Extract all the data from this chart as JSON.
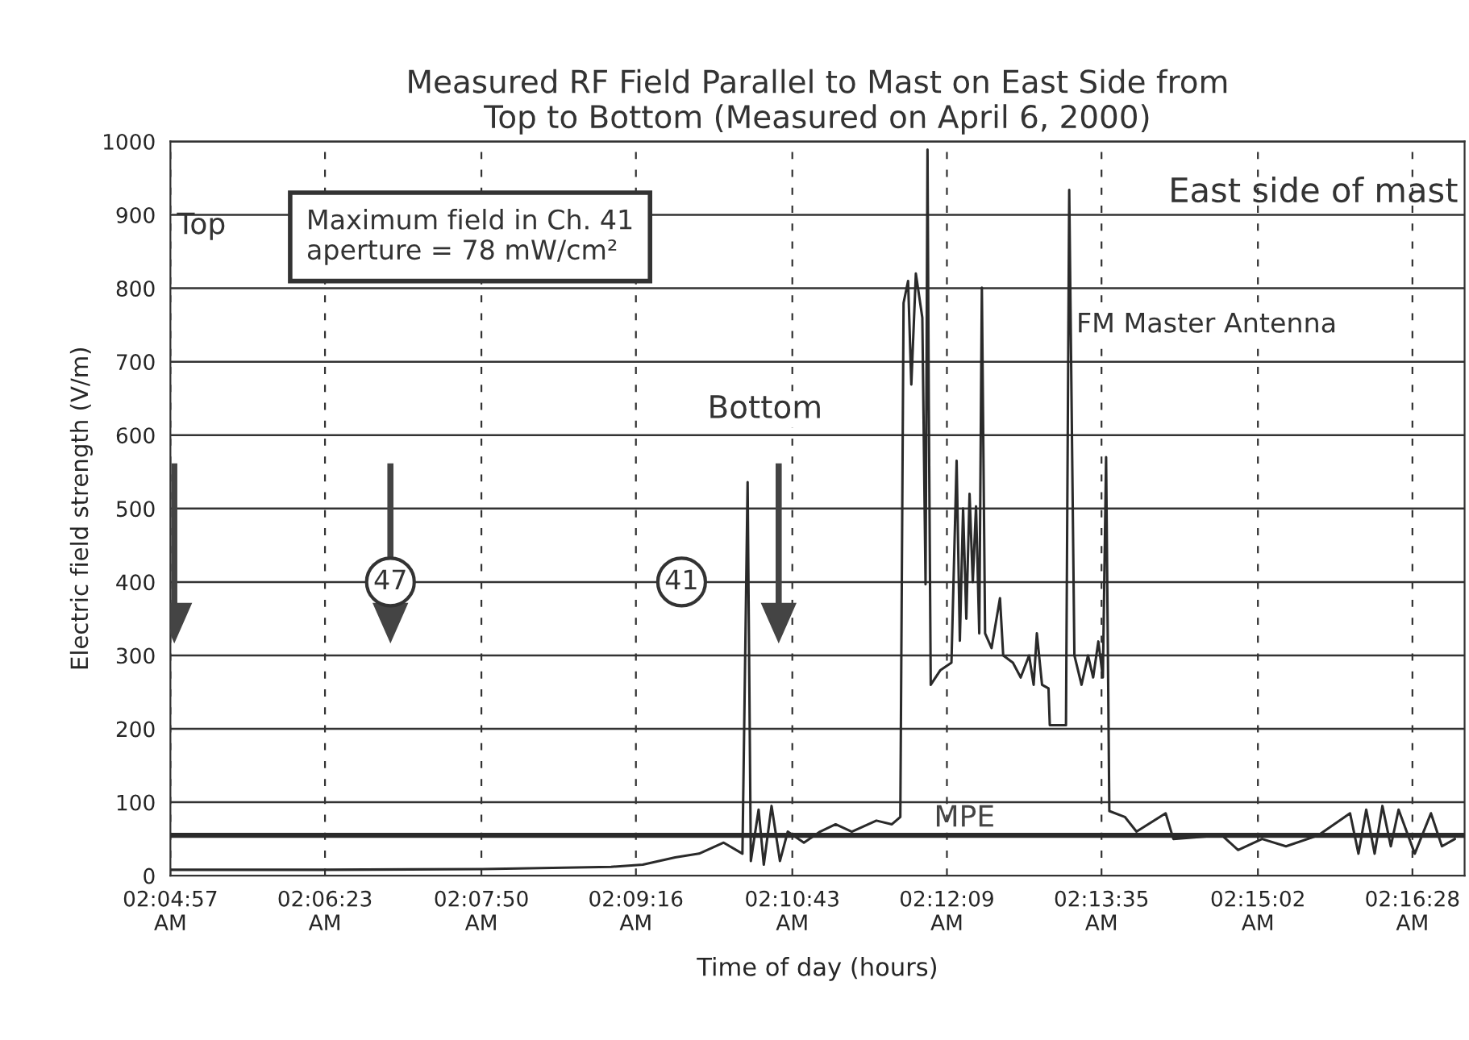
{
  "chart_data": {
    "type": "line",
    "title": "Measured RF Field Parallel to Mast on East Side from\nTop to Bottom (Measured on April 6, 2000)",
    "xlabel": "Time of day (hours)",
    "ylabel": "Electric field strength (V/m)",
    "x": [
      2.0825,
      2.1058,
      2.1307,
      2.1506,
      2.1555,
      2.1605,
      2.1642,
      2.168,
      2.1709,
      2.1717,
      2.1722,
      2.1734,
      2.1742,
      2.1754,
      2.1767,
      2.1779,
      2.1804,
      2.1829,
      2.1853,
      2.1878,
      2.1916,
      2.194,
      2.1953,
      2.1958,
      2.1965,
      2.197,
      2.1977,
      2.1987,
      2.1992,
      2.1995,
      2.1997,
      2.2,
      2.2015,
      2.2032,
      2.204,
      2.2045,
      2.205,
      2.2055,
      2.206,
      2.2065,
      2.207,
      2.2075,
      2.2079,
      2.2084,
      2.2094,
      2.2107,
      2.2112,
      2.2127,
      2.2139,
      2.2152,
      2.2159,
      2.2164,
      2.2172,
      2.2182,
      2.2184,
      2.2209,
      2.2214,
      2.2222,
      2.2233,
      2.2243,
      2.2251,
      2.2259,
      2.2266,
      2.2271,
      2.2276,
      2.23,
      2.2318,
      2.2363,
      2.2375,
      2.245,
      2.2475,
      2.2512,
      2.2549,
      2.2599,
      2.2648,
      2.2661,
      2.2673,
      2.2686,
      2.2698,
      2.2711,
      2.2723,
      2.2748,
      2.2773,
      2.279,
      2.281
    ],
    "series": [
      {
        "color": "#2a2a2a",
        "values": [
          8,
          8,
          9,
          12,
          15,
          25,
          30,
          45,
          30,
          536,
          20,
          90,
          15,
          95,
          20,
          60,
          45,
          60,
          70,
          60,
          75,
          70,
          80,
          780,
          810,
          669,
          820,
          760,
          397,
          989,
          640,
          260,
          280,
          290,
          565,
          320,
          500,
          350,
          520,
          400,
          503,
          330,
          801,
          330,
          310,
          378,
          300,
          290,
          270,
          300,
          260,
          330,
          260,
          255,
          205,
          205,
          934,
          300,
          260,
          300,
          270,
          319,
          270,
          570,
          88,
          80,
          60,
          85,
          50,
          55,
          35,
          50,
          40,
          55,
          85,
          30,
          90,
          30,
          95,
          40,
          90,
          30,
          85,
          40,
          50
        ]
      }
    ],
    "xlim": [
      2.0825,
      2.2825
    ],
    "ylim": [
      0,
      1000
    ],
    "xticks": [
      {
        "value": 2.0825,
        "label": "02:04:57\nAM"
      },
      {
        "value": 2.10639,
        "label": "02:06:23\nAM"
      },
      {
        "value": 2.13056,
        "label": "02:07:50\nAM"
      },
      {
        "value": 2.15444,
        "label": "02:09:16\nAM"
      },
      {
        "value": 2.17861,
        "label": "02:10:43\nAM"
      },
      {
        "value": 2.2025,
        "label": "02:12:09\nAM"
      },
      {
        "value": 2.22639,
        "label": "02:13:35\nAM"
      },
      {
        "value": 2.25056,
        "label": "02:15:02\nAM"
      },
      {
        "value": 2.27444,
        "label": "02:16:28\nAM"
      }
    ],
    "yticks": [
      0,
      100,
      200,
      300,
      400,
      500,
      600,
      700,
      800,
      900,
      1000
    ],
    "grid": true,
    "ref_lines": [
      {
        "axis": "y",
        "value": 55,
        "label": "MPE",
        "color": "#2a2a2a"
      }
    ],
    "annotations": [
      "Top",
      "Maximum field in Ch. 41\naperture = 78 mW/cm²",
      "East side of mast",
      "FM Master Antenna",
      "Bottom",
      "47",
      "41"
    ]
  }
}
